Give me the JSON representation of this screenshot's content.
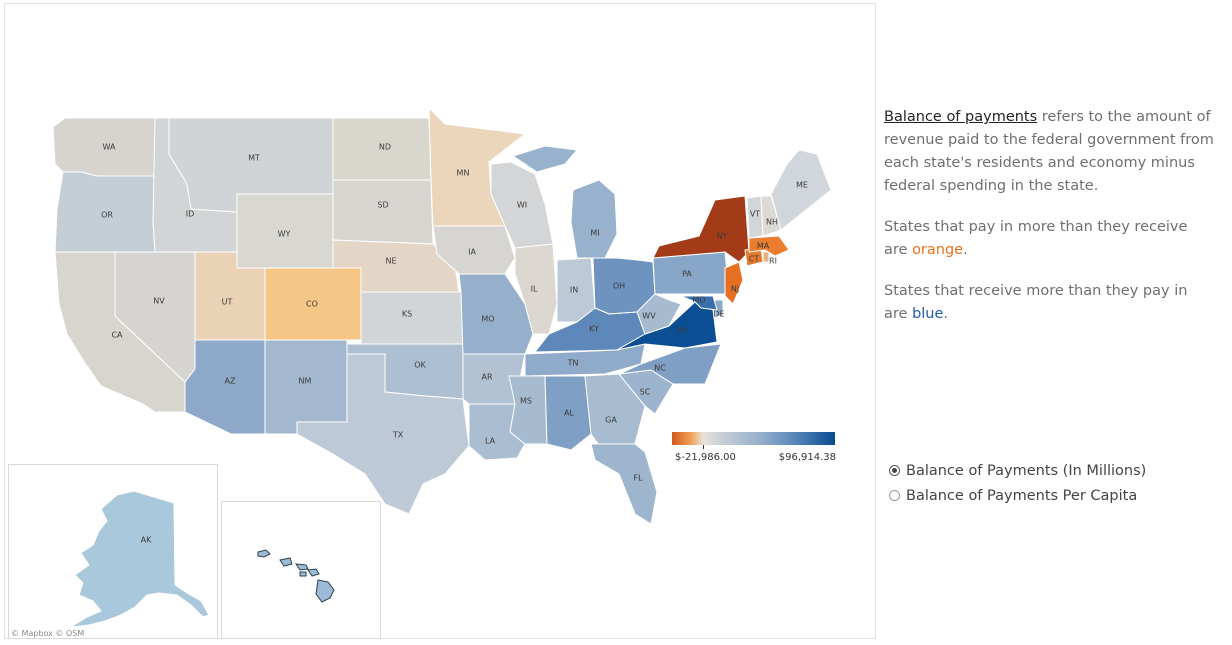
{
  "map": {
    "attribution": "© Mapbox  © OSM",
    "legend": {
      "min_label": "$-21,986.00",
      "max_label": "$96,914.38",
      "colors": [
        "#d25a1a",
        "#f1a35a",
        "#e8e2da",
        "#c9d0d6",
        "#93aecb",
        "#4f80b6",
        "#094b90"
      ]
    },
    "states": [
      {
        "abbr": "WA",
        "color": "#d7d4cf"
      },
      {
        "abbr": "OR",
        "color": "#c4ced7"
      },
      {
        "abbr": "CA",
        "color": "#d8d5cf"
      },
      {
        "abbr": "NV",
        "color": "#d6d4d0"
      },
      {
        "abbr": "ID",
        "color": "#d2d4d6"
      },
      {
        "abbr": "MT",
        "color": "#d1d4d6"
      },
      {
        "abbr": "WY",
        "color": "#d8d7d1"
      },
      {
        "abbr": "UT",
        "color": "#e9d2b6"
      },
      {
        "abbr": "AZ",
        "color": "#8da8c8"
      },
      {
        "abbr": "CO",
        "color": "#f5c686"
      },
      {
        "abbr": "NM",
        "color": "#a3b8cf"
      },
      {
        "abbr": "ND",
        "color": "#d9d6ce"
      },
      {
        "abbr": "SD",
        "color": "#d7d5d0"
      },
      {
        "abbr": "NE",
        "color": "#e4d6c6"
      },
      {
        "abbr": "KS",
        "color": "#d2d5d8"
      },
      {
        "abbr": "OK",
        "color": "#adbfd2"
      },
      {
        "abbr": "TX",
        "color": "#bdc9d6"
      },
      {
        "abbr": "MN",
        "color": "#ebd6bb"
      },
      {
        "abbr": "IA",
        "color": "#d6d5d2"
      },
      {
        "abbr": "MO",
        "color": "#96afcb"
      },
      {
        "abbr": "AR",
        "color": "#b2c2d3"
      },
      {
        "abbr": "LA",
        "color": "#aabdd1"
      },
      {
        "abbr": "WI",
        "color": "#d3d5d7"
      },
      {
        "abbr": "IL",
        "color": "#dbd6cf"
      },
      {
        "abbr": "MI",
        "color": "#98b1cc"
      },
      {
        "abbr": "IN",
        "color": "#bccad8"
      },
      {
        "abbr": "OH",
        "color": "#6f93bf"
      },
      {
        "abbr": "KY",
        "color": "#5f88ba"
      },
      {
        "abbr": "TN",
        "color": "#90abc9"
      },
      {
        "abbr": "MS",
        "color": "#a6bad0"
      },
      {
        "abbr": "AL",
        "color": "#7f9fc4"
      },
      {
        "abbr": "GA",
        "color": "#a8bcd1"
      },
      {
        "abbr": "FL",
        "color": "#9eb5ce"
      },
      {
        "abbr": "SC",
        "color": "#9db4ce"
      },
      {
        "abbr": "NC",
        "color": "#7f9fc4"
      },
      {
        "abbr": "VA",
        "color": "#0b4e93"
      },
      {
        "abbr": "WV",
        "color": "#a6bad0"
      },
      {
        "abbr": "PA",
        "color": "#88a6c7"
      },
      {
        "abbr": "NY",
        "color": "#a33a18"
      },
      {
        "abbr": "NJ",
        "color": "#e76f22"
      },
      {
        "abbr": "DE",
        "color": "#8aa8c8"
      },
      {
        "abbr": "MD",
        "color": "#3a6fae"
      },
      {
        "abbr": "CT",
        "color": "#e67a2c"
      },
      {
        "abbr": "RI",
        "color": "#e6b27f"
      },
      {
        "abbr": "MA",
        "color": "#ea7d2f"
      },
      {
        "abbr": "VT",
        "color": "#d3d6d8"
      },
      {
        "abbr": "NH",
        "color": "#dcdad5"
      },
      {
        "abbr": "ME",
        "color": "#d0d6dc"
      },
      {
        "abbr": "AK",
        "color": "#a9c8dc"
      },
      {
        "abbr": "HI",
        "color": "#9cbbd6"
      }
    ]
  },
  "description": {
    "term": "Balance of payments",
    "p1_rest": " refers to the amount of revenue paid to the federal government from each state's residents and economy minus federal spending in the state.",
    "p2_pre": "States that pay in more than they receive are ",
    "p2_color_word": "orange",
    "p2_post": ".",
    "p3_pre": "States that receive more than they pay in are ",
    "p3_color_word": "blue",
    "p3_post": "."
  },
  "measure_options": {
    "selected": "Balance of Payments (In Millions)",
    "options": [
      "Balance of Payments (In Millions)",
      "Balance of Payments Per Capita"
    ]
  }
}
